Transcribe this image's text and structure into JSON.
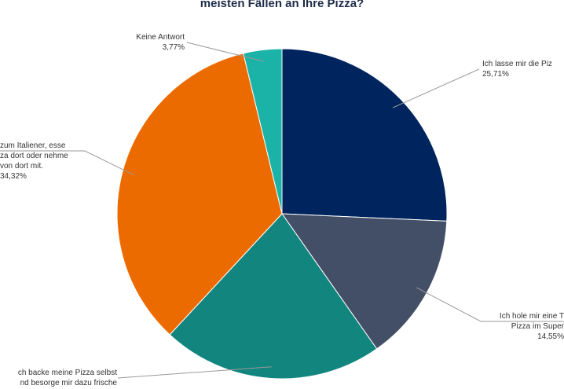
{
  "chart_data": {
    "type": "pie",
    "title": "meisten Fällen an Ihre Pizza?",
    "slices": [
      {
        "label_lines": [
          "Ich lasse mir die Piz"
        ],
        "value": 25.71,
        "value_label": "25,71%",
        "color": "#00245d"
      },
      {
        "label_lines": [
          "Ich hole mir eine T",
          "Pizza im Super"
        ],
        "value": 14.55,
        "value_label": "14,55%",
        "color": "#434f66"
      },
      {
        "label_lines": [
          "ch backe meine Pizza selbst",
          "nd besorge mir dazu frische"
        ],
        "value": 21.65,
        "value_label": "",
        "color": "#12857e"
      },
      {
        "label_lines": [
          "zum Italiener, esse",
          "za dort oder nehme",
          "von dort mit."
        ],
        "value": 34.32,
        "value_label": "34,32%",
        "color": "#ec6b00"
      },
      {
        "label_lines": [
          "Keine Antwort"
        ],
        "value": 3.77,
        "value_label": "3,77%",
        "color": "#1bb2a7"
      }
    ]
  }
}
